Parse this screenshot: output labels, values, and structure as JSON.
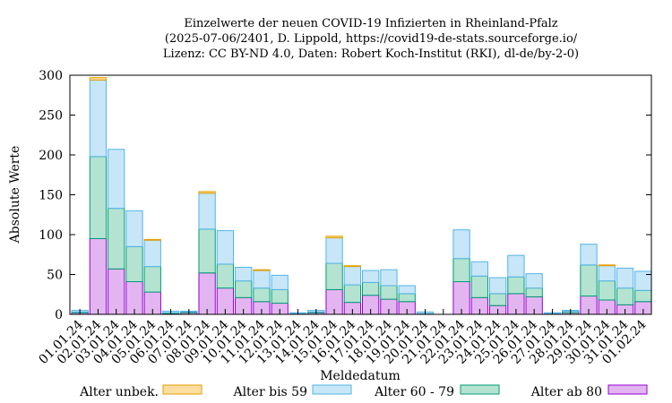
{
  "chart_data": {
    "type": "bar",
    "stacked": true,
    "title_lines": [
      "Einzelwerte der neuen COVID-19 Infizierten in Rheinland-Pfalz",
      "(2025-07-06/2401, D. Lippold, https://covid19-de-stats.sourceforge.io/",
      "Lizenz: CC BY-ND 4.0, Daten: Robert Koch-Institut (RKI), dl-de/by-2-0)"
    ],
    "xlabel": "Meldedatum",
    "ylabel": "Absolute Werte",
    "ylim": [
      0,
      300
    ],
    "yticks": [
      0,
      50,
      100,
      150,
      200,
      250,
      300
    ],
    "grid": false,
    "legend_position": "bottom",
    "categories": [
      "01.01.24",
      "02.01.24",
      "03.01.24",
      "04.01.24",
      "05.01.24",
      "06.01.24",
      "07.01.24",
      "08.01.24",
      "09.01.24",
      "10.01.24",
      "11.01.24",
      "12.01.24",
      "13.01.24",
      "14.01.24",
      "15.01.24",
      "16.01.24",
      "17.01.24",
      "18.01.24",
      "19.01.24",
      "20.01.24",
      "21.01.24",
      "22.01.24",
      "23.01.24",
      "24.01.24",
      "25.01.24",
      "26.01.24",
      "27.01.24",
      "28.01.24",
      "29.01.24",
      "30.01.24",
      "31.01.24",
      "01.02.24"
    ],
    "series": [
      {
        "name": "Alter ab 80",
        "fill": "#e2b5f0",
        "stroke": "#9400d3",
        "values": [
          2,
          95,
          57,
          41,
          28,
          1,
          2,
          52,
          33,
          21,
          16,
          14,
          1,
          2,
          31,
          15,
          24,
          19,
          16,
          1,
          0,
          41,
          21,
          11,
          26,
          22,
          1,
          2,
          23,
          18,
          12,
          16
        ]
      },
      {
        "name": "Alter 60 - 79",
        "fill": "#b4e3d2",
        "stroke": "#009e73",
        "values": [
          1,
          103,
          76,
          44,
          32,
          1,
          1,
          55,
          30,
          21,
          17,
          17,
          0,
          1,
          33,
          22,
          16,
          17,
          10,
          0,
          0,
          29,
          27,
          15,
          21,
          11,
          0,
          2,
          39,
          24,
          21,
          14
        ]
      },
      {
        "name": "Alter bis 59",
        "fill": "#c7e6f7",
        "stroke": "#56b4e9",
        "values": [
          2,
          96,
          74,
          45,
          33,
          2,
          1,
          45,
          42,
          17,
          22,
          18,
          1,
          2,
          32,
          23,
          15,
          20,
          10,
          2,
          0,
          36,
          18,
          20,
          27,
          18,
          1,
          1,
          26,
          19,
          25,
          24
        ]
      },
      {
        "name": "Alter unbek.",
        "fill": "#fbdea0",
        "stroke": "#e69f00",
        "values": [
          0,
          3,
          0,
          0,
          1,
          0,
          0,
          2,
          0,
          0,
          1,
          0,
          0,
          0,
          2,
          1,
          0,
          0,
          0,
          0,
          0,
          0,
          0,
          0,
          0,
          0,
          0,
          0,
          0,
          1,
          0,
          0
        ]
      }
    ],
    "legend_order": [
      "Alter unbek.",
      "Alter bis 59",
      "Alter 60 - 79",
      "Alter ab 80"
    ]
  }
}
